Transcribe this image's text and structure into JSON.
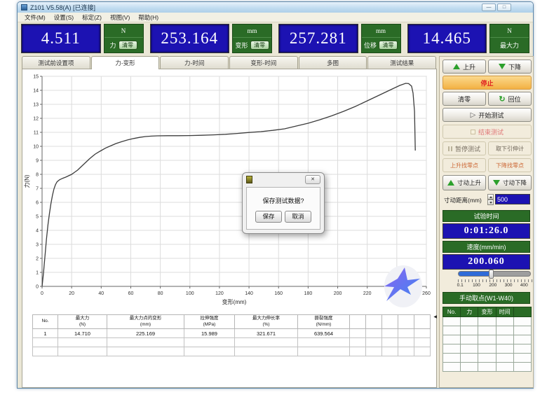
{
  "window": {
    "title": "Z101 V5.58(A)  [已连接]",
    "menu": [
      "文件(M)",
      "设置(S)",
      "标定(Z)",
      "视图(V)",
      "帮助(H)"
    ],
    "minimize_glyph": "—",
    "maximize_glyph": "□"
  },
  "displays": [
    {
      "value": "4.511",
      "unit": "N",
      "label": "力",
      "clear_label": "清零"
    },
    {
      "value": "253.164",
      "unit": "mm",
      "label": "变形",
      "clear_label": "清零"
    },
    {
      "value": "257.281",
      "unit": "mm",
      "label": "位移",
      "clear_label": "清零"
    },
    {
      "value": "14.465",
      "unit": "N",
      "label": "最大力"
    }
  ],
  "tabs": [
    {
      "label": "测试前设置项",
      "active": false
    },
    {
      "label": "力-变形",
      "active": true
    },
    {
      "label": "力-时间",
      "active": false
    },
    {
      "label": "变形-时间",
      "active": false
    },
    {
      "label": "多图",
      "active": false
    },
    {
      "label": "测试结果",
      "active": false
    }
  ],
  "chart_data": {
    "type": "line",
    "title": "",
    "xlabel": "变形(mm)",
    "ylabel": "力(N)",
    "xlim": [
      0,
      260
    ],
    "ylim": [
      0,
      15
    ],
    "xticks": [
      0,
      20,
      40,
      60,
      80,
      100,
      120,
      140,
      160,
      180,
      200,
      220,
      240,
      260
    ],
    "yticks": [
      0,
      1,
      2,
      3,
      4,
      5,
      6,
      7,
      8,
      9,
      10,
      11,
      12,
      13,
      14,
      15
    ],
    "grid": true,
    "legend": "none",
    "series": [
      {
        "name": "力-变形曲线",
        "points": [
          [
            0,
            0
          ],
          [
            1,
            1.0
          ],
          [
            2,
            2.2
          ],
          [
            3,
            3.4
          ],
          [
            4,
            4.4
          ],
          [
            5,
            5.2
          ],
          [
            6,
            5.9
          ],
          [
            7,
            6.5
          ],
          [
            8,
            6.95
          ],
          [
            9,
            7.25
          ],
          [
            10,
            7.45
          ],
          [
            11,
            7.55
          ],
          [
            12,
            7.62
          ],
          [
            14,
            7.72
          ],
          [
            16,
            7.8
          ],
          [
            18,
            7.9
          ],
          [
            20,
            8.0
          ],
          [
            22,
            8.15
          ],
          [
            24,
            8.3
          ],
          [
            26,
            8.5
          ],
          [
            28,
            8.7
          ],
          [
            30,
            8.9
          ],
          [
            32,
            9.1
          ],
          [
            34,
            9.28
          ],
          [
            36,
            9.45
          ],
          [
            38,
            9.58
          ],
          [
            40,
            9.7
          ],
          [
            43,
            9.88
          ],
          [
            46,
            10.02
          ],
          [
            50,
            10.2
          ],
          [
            54,
            10.34
          ],
          [
            58,
            10.46
          ],
          [
            62,
            10.56
          ],
          [
            66,
            10.64
          ],
          [
            70,
            10.7
          ],
          [
            74,
            10.73
          ],
          [
            78,
            10.75
          ],
          [
            85,
            10.76
          ],
          [
            92,
            10.76
          ],
          [
            100,
            10.77
          ],
          [
            108,
            10.79
          ],
          [
            116,
            10.82
          ],
          [
            124,
            10.86
          ],
          [
            132,
            10.92
          ],
          [
            140,
            10.99
          ],
          [
            148,
            11.05
          ],
          [
            156,
            11.14
          ],
          [
            164,
            11.25
          ],
          [
            172,
            11.45
          ],
          [
            180,
            11.65
          ],
          [
            188,
            11.9
          ],
          [
            196,
            12.18
          ],
          [
            204,
            12.5
          ],
          [
            212,
            12.85
          ],
          [
            220,
            13.25
          ],
          [
            228,
            13.65
          ],
          [
            236,
            14.05
          ],
          [
            242,
            14.35
          ],
          [
            246,
            14.5
          ],
          [
            248,
            14.48
          ],
          [
            250,
            14.3
          ],
          [
            251,
            13.8
          ],
          [
            252,
            12.5
          ],
          [
            252.5,
            9.7
          ]
        ]
      }
    ]
  },
  "dialog": {
    "message": "保存测试数据?",
    "save_label": "保存",
    "cancel_label": "取消",
    "close_glyph": "✕"
  },
  "controls": {
    "up": "上升",
    "down": "下降",
    "stop": "停止",
    "zero": "清零",
    "return": "回位",
    "return_glyph": "↻",
    "start_test": "开始测试",
    "start_glyph": "▷",
    "end_test": "结束测试",
    "pause_test": "暂停测试",
    "remove_extensometer": "取下引伸计",
    "up_find_zero": "上升找零点",
    "down_find_zero": "下降找零点",
    "jog_up": "寸动上升",
    "jog_down": "寸动下降",
    "jog_distance_label": "寸动距离(mm)",
    "jog_distance_value": "500",
    "test_time_label": "试验时间",
    "test_time_value": "0:01:26.0",
    "speed_label": "速度(mm/min)",
    "speed_value": "200.060",
    "speed_slider_percent": 42,
    "slider_labels": [
      "0.1",
      "100",
      "200",
      "300",
      "400"
    ],
    "manual_points_label": "手动取点(W1-W40)",
    "manual_points_columns": [
      "No.",
      "力",
      "变形",
      "时间",
      ""
    ],
    "manual_points_empty_rows": 6
  },
  "results_table": {
    "columns": [
      {
        "name": "No.",
        "unit": ""
      },
      {
        "name": "最大力",
        "unit": "(N)"
      },
      {
        "name": "最大力点的变形",
        "unit": "(mm)"
      },
      {
        "name": "拉伸强度",
        "unit": "(MPa)"
      },
      {
        "name": "最大力伸长率",
        "unit": "(%)"
      },
      {
        "name": "撕裂强度",
        "unit": "(N/mm)"
      }
    ],
    "rows": [
      [
        "1",
        "14.710",
        "225.169",
        "15.989",
        "321.671",
        "639.564"
      ]
    ],
    "empty_rows": 2,
    "empty_cols": 5
  },
  "colors": {
    "lcd_blue": "#1c12b2",
    "panel_green": "#2a6b26",
    "stop_orange": "#f3b143",
    "alert_red": "#e02020",
    "find_zero_text": "#cc6633",
    "disabled_red": "#e07777",
    "curve": "#3c3c3c",
    "slider_fill": "#2f6bd8"
  }
}
